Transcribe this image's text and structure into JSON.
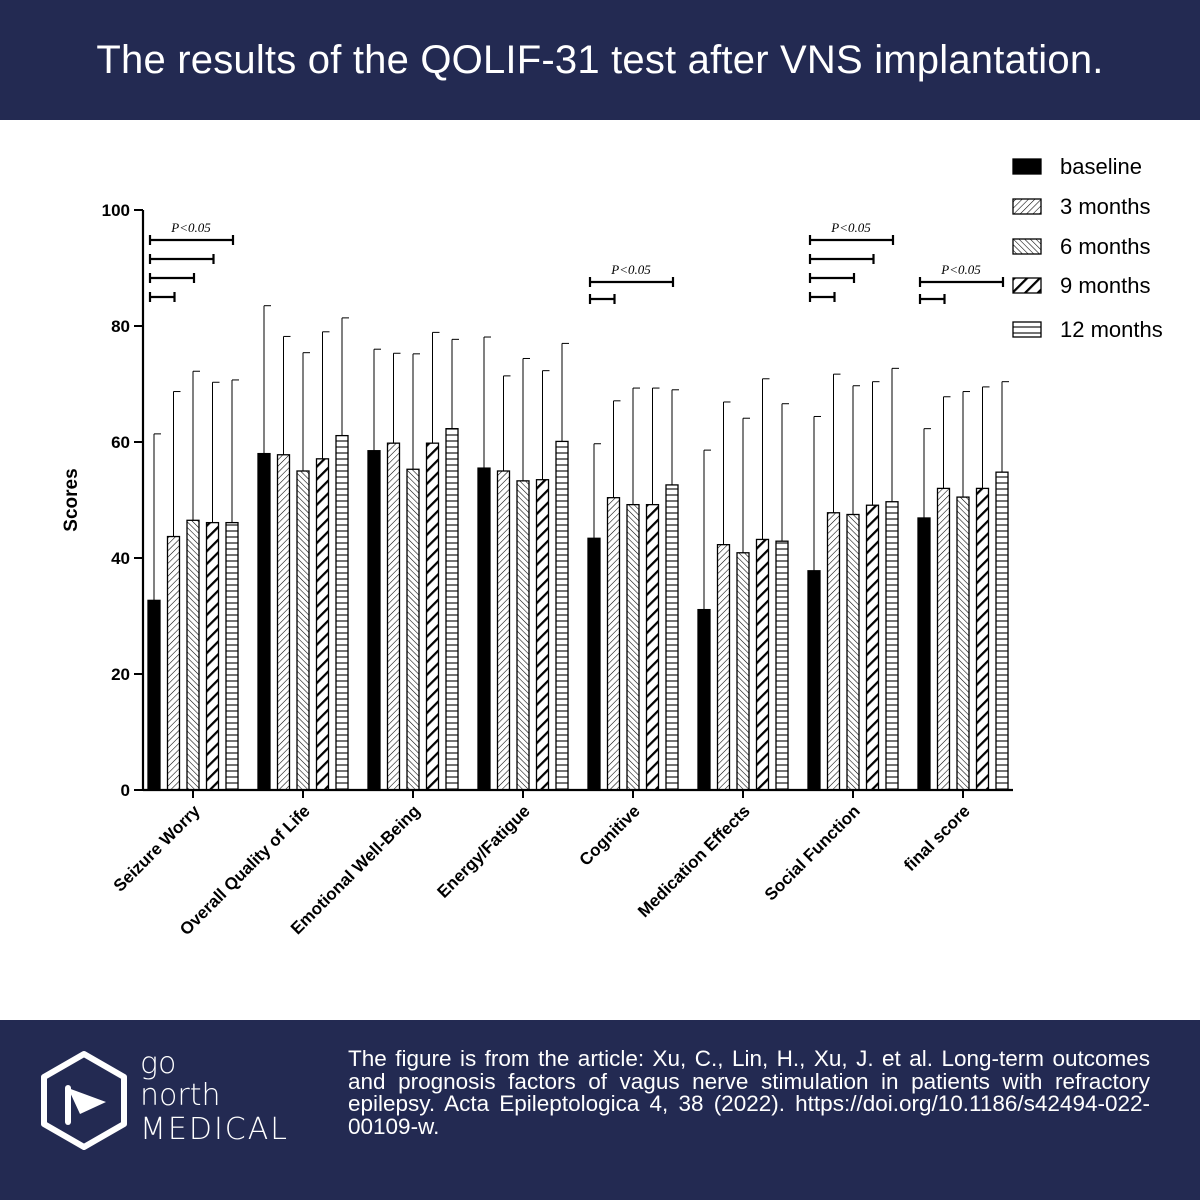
{
  "header": {
    "title": "The results of the QOLIF-31 test after VNS implantation."
  },
  "chart_data": {
    "type": "bar",
    "title": "The results of the QOLIF-31 test after VNS implantation.",
    "xlabel": "",
    "ylabel": "Scores",
    "ylim": [
      0,
      100
    ],
    "yticks": [
      0,
      20,
      40,
      60,
      80,
      100
    ],
    "grid": false,
    "legend_position": "top-right",
    "categories": [
      "Seizure Worry",
      "Overall Quality of Life",
      "Emotional Well-Being",
      "Energy/Fatigue",
      "Cognitive",
      "Medication Effects",
      "Social Function",
      "final score"
    ],
    "series": [
      {
        "name": "baseline",
        "values": [
          32.7,
          58.0,
          58.5,
          55.5,
          43.4,
          31.1,
          37.8,
          46.9
        ],
        "errors": [
          28.7,
          25.5,
          17.5,
          22.6,
          16.3,
          27.5,
          26.6,
          15.4
        ]
      },
      {
        "name": "3 months",
        "values": [
          43.7,
          57.8,
          59.8,
          55.0,
          50.4,
          42.3,
          47.8,
          52.0
        ],
        "errors": [
          25.0,
          20.4,
          15.5,
          16.4,
          16.7,
          24.6,
          23.9,
          15.8
        ]
      },
      {
        "name": "6 months",
        "values": [
          46.5,
          55.0,
          55.3,
          53.3,
          49.2,
          40.9,
          47.5,
          50.5
        ],
        "errors": [
          25.7,
          20.4,
          19.9,
          21.1,
          20.1,
          23.2,
          22.2,
          18.2
        ]
      },
      {
        "name": "9 months",
        "values": [
          46.1,
          57.1,
          59.8,
          53.5,
          49.2,
          43.2,
          49.1,
          52.0
        ],
        "errors": [
          24.2,
          21.9,
          19.1,
          18.8,
          20.1,
          27.7,
          21.3,
          17.5
        ]
      },
      {
        "name": "12 months",
        "values": [
          46.1,
          61.1,
          62.3,
          60.1,
          52.6,
          42.9,
          49.7,
          54.8
        ],
        "errors": [
          24.6,
          20.3,
          15.4,
          16.9,
          16.4,
          23.7,
          23.0,
          15.6
        ]
      }
    ],
    "annotations": [
      {
        "category": "Seizure Worry",
        "label": "P<0.05",
        "comparisons": [
          "3 months",
          "6 months",
          "9 months",
          "12 months"
        ]
      },
      {
        "category": "Cognitive",
        "label": "P<0.05",
        "comparisons": [
          "3 months",
          "12 months"
        ]
      },
      {
        "category": "Social Function",
        "label": "P<0.05",
        "comparisons": [
          "3 months",
          "6 months",
          "9 months",
          "12 months"
        ]
      },
      {
        "category": "final score",
        "label": "P<0.05",
        "comparisons": [
          "3 months",
          "12 months"
        ]
      }
    ]
  },
  "colors": {
    "band": "#232a52",
    "ink": "#000000",
    "text_on_band": "#ffffff"
  },
  "footer": {
    "logo_lines": [
      "go",
      "north",
      "MEDICAL"
    ],
    "logo_icon": "play-triangle-icon",
    "citation": "The figure is from the article: Xu, C., Lin, H., Xu, J. et al. Long-term outcomes and prognosis factors of vagus nerve stimulation in patients with refractory epilepsy. Acta Epileptologica 4, 38 (2022). https://doi.org/10.1186/s42494-022-00109-w."
  }
}
